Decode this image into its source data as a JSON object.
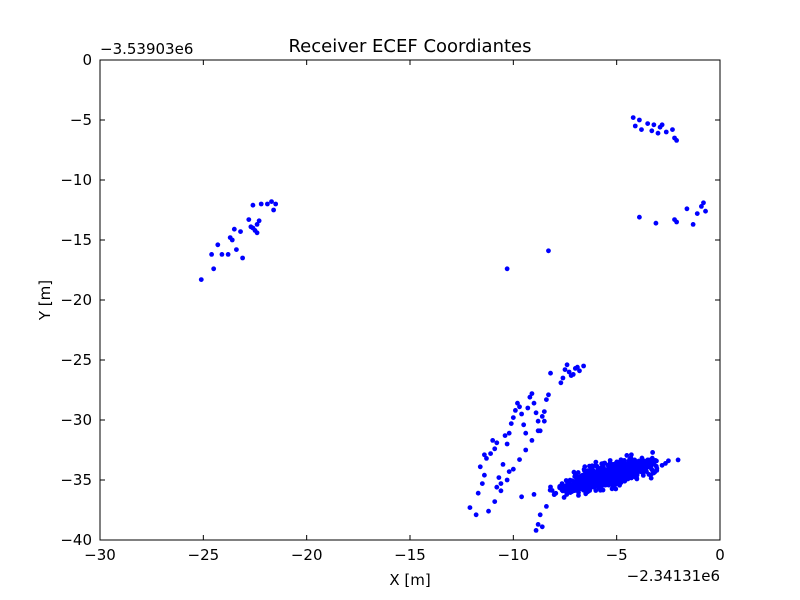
{
  "chart_data": {
    "type": "scatter",
    "title": "Receiver ECEF Coordiantes",
    "xlabel": "X [m]",
    "ylabel": "Y [m]",
    "x_offset_label": "−2.34131e6",
    "y_offset_label": "−3.53903e6",
    "xlim": [
      -30,
      0
    ],
    "ylim": [
      -40,
      0
    ],
    "xticks": [
      -30,
      -25,
      -20,
      -15,
      -10,
      -5,
      0
    ],
    "xtick_labels": [
      "−30",
      "−25",
      "−20",
      "−15",
      "−10",
      "−5",
      "0"
    ],
    "yticks": [
      0,
      -5,
      -10,
      -15,
      -20,
      -25,
      -30,
      -35,
      -40
    ],
    "ytick_labels": [
      "0",
      "−5",
      "−10",
      "−15",
      "−20",
      "−25",
      "−30",
      "−35",
      "−40"
    ],
    "grid": false,
    "marker_color": "#0000ff",
    "series": [
      {
        "x": [
          -25.1,
          -24.5,
          -24.6,
          -24.3,
          -24.1,
          -23.8,
          -23.6,
          -23.7,
          -23.5,
          -23.4,
          -23.2,
          -23.1,
          -22.8,
          -22.6,
          -22.7,
          -22.5,
          -22.4,
          -22.3,
          -22.6,
          -22.4,
          -21.9,
          -21.7,
          -21.6,
          -21.5,
          -22.2
        ],
        "y": [
          -18.3,
          -17.4,
          -16.2,
          -15.4,
          -16.2,
          -16.2,
          -15.0,
          -14.8,
          -14.1,
          -15.8,
          -14.3,
          -16.5,
          -13.3,
          -14.0,
          -13.9,
          -14.2,
          -13.7,
          -13.4,
          -12.1,
          -14.4,
          -12.0,
          -11.8,
          -12.5,
          -12.0,
          -12.0
        ]
      },
      {
        "x": [
          -10.3,
          -8.3,
          -4.2,
          -4.1,
          -3.9,
          -3.8,
          -3.5,
          -3.3,
          -3.2,
          -3.0,
          -2.9,
          -2.8,
          -2.6,
          -2.3,
          -2.2,
          -2.1,
          -3.9,
          -3.1,
          -2.2,
          -2.1,
          -1.6,
          -1.3,
          -1.1,
          -0.9,
          -0.8,
          -0.7
        ],
        "y": [
          -17.4,
          -15.9,
          -4.8,
          -5.5,
          -5.0,
          -5.8,
          -5.3,
          -5.9,
          -5.4,
          -6.1,
          -5.6,
          -5.4,
          -6.0,
          -5.8,
          -6.5,
          -6.7,
          -13.1,
          -13.6,
          -13.3,
          -13.5,
          -12.4,
          -13.7,
          -12.8,
          -12.2,
          -11.9,
          -12.6
        ]
      },
      {
        "x": [
          -12.1,
          -11.8,
          -11.7,
          -11.5,
          -11.4,
          -11.3,
          -11.1,
          -11.0,
          -10.9,
          -10.8,
          -10.7,
          -10.6,
          -10.5,
          -10.4,
          -10.3,
          -10.2,
          -10.1,
          -10.0,
          -9.9,
          -9.8,
          -9.7,
          -9.6,
          -9.5,
          -9.4,
          -9.3,
          -9.2,
          -9.1,
          -9.0,
          -8.9,
          -8.8,
          -8.7,
          -8.6,
          -8.5,
          -8.4,
          -8.3,
          -8.2,
          -11.2,
          -10.9,
          -10.6,
          -10.3,
          -10.0,
          -9.7,
          -9.4,
          -9.1,
          -8.8,
          -8.5,
          -11.6,
          -11.4,
          -10.8,
          -10.2,
          -9.6,
          -9.0,
          -8.4,
          -8.8,
          -8.6,
          -8.9,
          -8.7,
          -7.5,
          -7.2,
          -6.9,
          -6.6,
          -7.3,
          -7.0,
          -7.4,
          -7.1,
          -6.8,
          -7.6,
          -7.7
        ],
        "y": [
          -37.3,
          -37.9,
          -36.1,
          -35.3,
          -34.6,
          -33.2,
          -32.8,
          -31.7,
          -32.4,
          -35.6,
          -34.8,
          -35.3,
          -33.7,
          -31.3,
          -32.0,
          -31.1,
          -30.3,
          -29.8,
          -29.2,
          -28.6,
          -28.9,
          -29.5,
          -30.4,
          -31.1,
          -29.0,
          -28.1,
          -27.8,
          -28.6,
          -29.4,
          -30.1,
          -30.9,
          -29.7,
          -29.3,
          -28.3,
          -27.9,
          -26.1,
          -37.6,
          -36.8,
          -35.9,
          -35.0,
          -34.1,
          -33.3,
          -32.5,
          -31.7,
          -30.9,
          -30.1,
          -33.9,
          -32.9,
          -31.9,
          -34.3,
          -36.4,
          -36.2,
          -37.2,
          -38.7,
          -38.9,
          -39.2,
          -37.9,
          -25.8,
          -26.3,
          -25.6,
          -25.5,
          -26.0,
          -25.7,
          -25.4,
          -26.2,
          -25.9,
          -26.5,
          -26.9
        ]
      }
    ],
    "dense_cluster": {
      "center_x": -5.4,
      "center_y": -34.6,
      "count": 1100
    }
  }
}
